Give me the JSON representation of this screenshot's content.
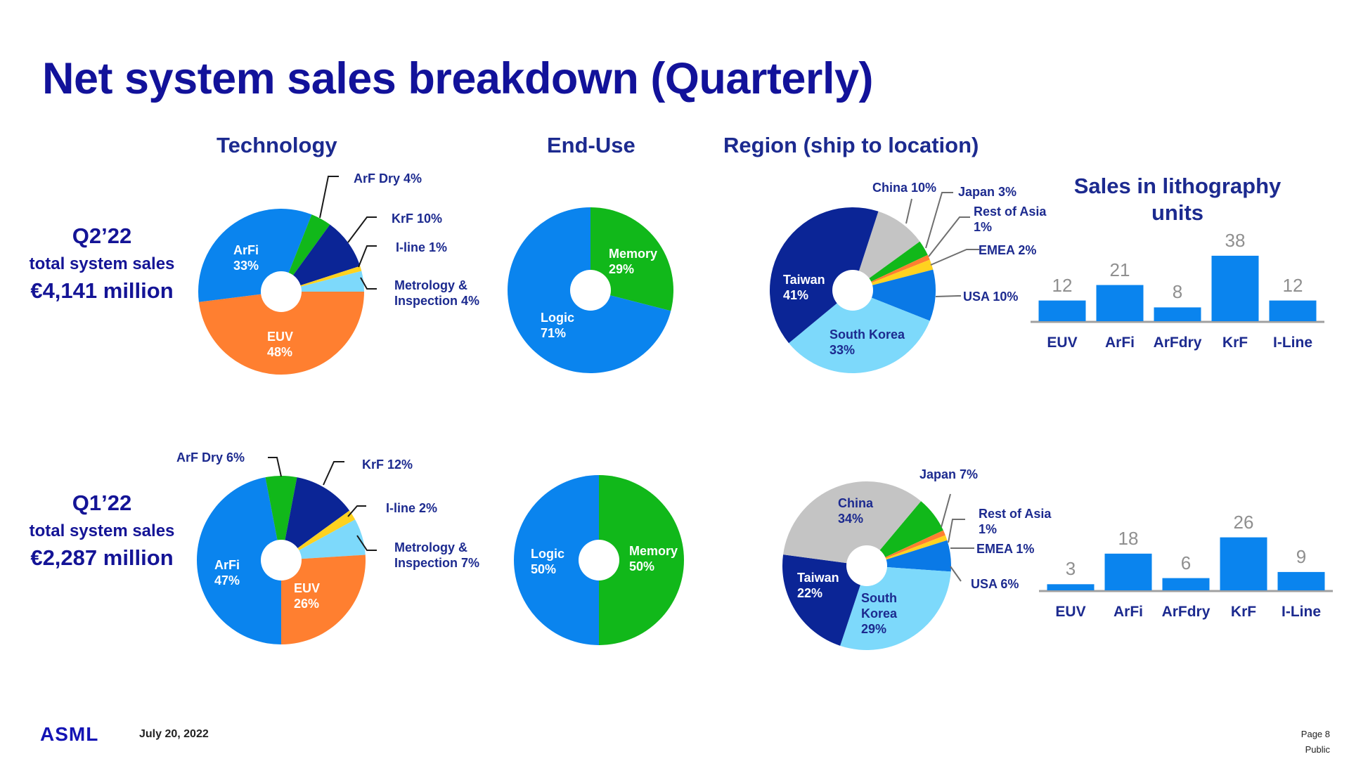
{
  "slide": {
    "title": "Net system sales breakdown (Quarterly)",
    "column_headings": {
      "technology": "Technology",
      "end_use": "End-Use",
      "region": "Region (ship to location)"
    },
    "bar_title_line1": "Sales in lithography",
    "bar_title_line2": "units",
    "q2": {
      "quarter": "Q2’22",
      "subtitle": "total system sales",
      "value": "€4,141 million"
    },
    "q1": {
      "quarter": "Q1’22",
      "subtitle": "total system sales",
      "value": "€2,287 million"
    },
    "footer": {
      "logo": "ASML",
      "date": "July 20, 2022",
      "page": "Page 8",
      "classification": "Public"
    }
  },
  "labels": {
    "q2_tech": {
      "arfi_name": "ArFi",
      "arfi_pct": "33%",
      "euv_name": "EUV",
      "euv_pct": "48%",
      "arfdry": "ArF Dry 4%",
      "krf": "KrF 10%",
      "iline": "I-line 1%",
      "metro1": "Metrology &",
      "metro2": "Inspection 4%"
    },
    "q2_enduse": {
      "memory_name": "Memory",
      "memory_pct": "29%",
      "logic_name": "Logic",
      "logic_pct": "71%"
    },
    "q2_region": {
      "taiwan_name": "Taiwan",
      "taiwan_pct": "41%",
      "korea_name": "South Korea",
      "korea_pct": "33%",
      "china": "China 10%",
      "japan": "Japan 3%",
      "roa1": "Rest of Asia",
      "roa2": "1%",
      "emea": "EMEA 2%",
      "usa": "USA 10%"
    },
    "q1_tech": {
      "arfi_name": "ArFi",
      "arfi_pct": "47%",
      "euv_name": "EUV",
      "euv_pct": "26%",
      "arfdry": "ArF Dry 6%",
      "krf": "KrF 12%",
      "iline": "I-line 2%",
      "metro1": "Metrology &",
      "metro2": "Inspection 7%"
    },
    "q1_enduse": {
      "memory_name": "Memory",
      "memory_pct": "50%",
      "logic_name": "Logic",
      "logic_pct": "50%"
    },
    "q1_region": {
      "china_name": "China",
      "china_pct": "34%",
      "taiwan_name": "Taiwan",
      "taiwan_pct": "22%",
      "korea_name1": "South",
      "korea_name2": "Korea",
      "korea_pct": "29%",
      "japan": "Japan 7%",
      "roa1": "Rest of Asia",
      "roa2": "1%",
      "emea": "EMEA 1%",
      "usa": "USA 6%"
    },
    "q2_units": {
      "v": [
        "12",
        "21",
        "8",
        "38",
        "12"
      ],
      "c": [
        "EUV",
        "ArFi",
        "ArFdry",
        "KrF",
        "I-Line"
      ]
    },
    "q1_units": {
      "v": [
        "3",
        "18",
        "6",
        "26",
        "9"
      ],
      "c": [
        "EUV",
        "ArFi",
        "ArFdry",
        "KrF",
        "I-Line"
      ]
    }
  },
  "colors": {
    "title": "#12129a",
    "arfi": "#0a84ee",
    "euv": "#ff7f30",
    "arfdry": "#11b81a",
    "krf": "#0b2596",
    "iline": "#ffd21f",
    "metrology": "#7dd9fb",
    "logic": "#0a84ee",
    "memory": "#11b81a",
    "taiwan": "#0b2596",
    "south_korea": "#7dd9fb",
    "china": "#c4c4c4",
    "japan": "#11b81a",
    "rest_of_asia": "#ff7f30",
    "emea": "#ffd21f",
    "usa": "#0a79e6",
    "bar": "#0a84ee"
  },
  "chart_data": [
    {
      "type": "pie",
      "title": "Technology — Q2’22",
      "categories": [
        "EUV",
        "ArFi",
        "ArF Dry",
        "KrF",
        "I-line",
        "Metrology & Inspection"
      ],
      "values": [
        48,
        33,
        4,
        10,
        1,
        4
      ],
      "unit": "%",
      "donut": true
    },
    {
      "type": "pie",
      "title": "End-Use — Q2’22",
      "categories": [
        "Logic",
        "Memory"
      ],
      "values": [
        71,
        29
      ],
      "unit": "%",
      "donut": true
    },
    {
      "type": "pie",
      "title": "Region (ship to location) — Q2’22",
      "categories": [
        "Taiwan",
        "South Korea",
        "China",
        "Japan",
        "Rest of Asia",
        "EMEA",
        "USA"
      ],
      "values": [
        41,
        33,
        10,
        3,
        1,
        2,
        10
      ],
      "unit": "%",
      "donut": true
    },
    {
      "type": "bar",
      "title": "Sales in lithography units — Q2’22",
      "categories": [
        "EUV",
        "ArFi",
        "ArFdry",
        "KrF",
        "I-Line"
      ],
      "values": [
        12,
        21,
        8,
        38,
        12
      ],
      "xlabel": "",
      "ylabel": "",
      "grid": false
    },
    {
      "type": "pie",
      "title": "Technology — Q1’22",
      "categories": [
        "EUV",
        "ArFi",
        "ArF Dry",
        "KrF",
        "I-line",
        "Metrology & Inspection"
      ],
      "values": [
        26,
        47,
        6,
        12,
        2,
        7
      ],
      "unit": "%",
      "donut": true
    },
    {
      "type": "pie",
      "title": "End-Use — Q1’22",
      "categories": [
        "Logic",
        "Memory"
      ],
      "values": [
        50,
        50
      ],
      "unit": "%",
      "donut": true
    },
    {
      "type": "pie",
      "title": "Region (ship to location) — Q1’22",
      "categories": [
        "China",
        "Taiwan",
        "South Korea",
        "Japan",
        "Rest of Asia",
        "EMEA",
        "USA"
      ],
      "values": [
        34,
        22,
        29,
        7,
        1,
        1,
        6
      ],
      "unit": "%",
      "donut": true
    },
    {
      "type": "bar",
      "title": "Sales in lithography units — Q1’22",
      "categories": [
        "EUV",
        "ArFi",
        "ArFdry",
        "KrF",
        "I-Line"
      ],
      "values": [
        3,
        18,
        6,
        26,
        9
      ],
      "xlabel": "",
      "ylabel": "",
      "grid": false
    }
  ]
}
